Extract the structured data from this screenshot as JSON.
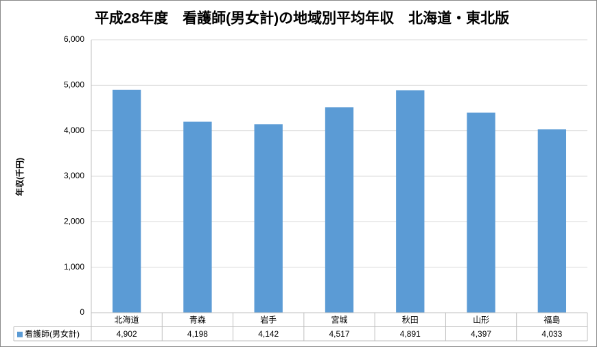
{
  "chart_data": {
    "type": "bar",
    "title": "平成28年度　看護師(男女計)の地域別平均年収　北海道・東北版",
    "y_label": "年収(千円)",
    "categories": [
      "北海道",
      "青森",
      "岩手",
      "宮城",
      "秋田",
      "山形",
      "福島"
    ],
    "series": [
      {
        "name": "看護師(男女計)",
        "color": "#5b9bd5",
        "values": [
          4902,
          4198,
          4142,
          4517,
          4891,
          4397,
          4033
        ],
        "value_labels": [
          "4,902",
          "4,198",
          "4,142",
          "4,517",
          "4,891",
          "4,397",
          "4,033"
        ]
      }
    ],
    "ylim": [
      0,
      6000
    ],
    "yticks": [
      0,
      {
        "value": 1000,
        "label": "1,000"
      },
      {
        "value": 2000,
        "label": "2,000"
      },
      {
        "value": 3000,
        "label": "3,000"
      },
      {
        "value": 4000,
        "label": "4,000"
      },
      {
        "value": 5000,
        "label": "5,000"
      },
      {
        "value": 6000,
        "label": "6,000"
      }
    ],
    "grid": true,
    "data_table": true
  }
}
